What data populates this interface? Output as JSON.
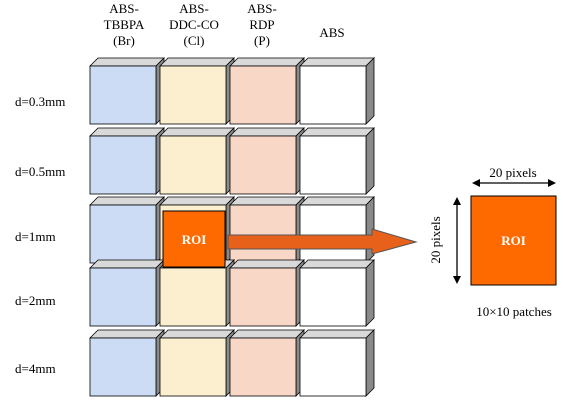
{
  "columns": [
    {
      "lines": [
        "ABS-",
        "TBBPA",
        "(Br)"
      ],
      "color": "#cddcf5"
    },
    {
      "lines": [
        "ABS-",
        "DDC-CO",
        "(Cl)"
      ],
      "color": "#fbefcf"
    },
    {
      "lines": [
        "ABS-",
        "RDP",
        "(P)"
      ],
      "color": "#f9d7c7"
    },
    {
      "lines": [
        "ABS"
      ],
      "color": "#ffffff"
    }
  ],
  "rows": [
    "d=0.3mm",
    "d=0.5mm",
    "d=1mm",
    "d=2mm",
    "d=4mm"
  ],
  "roi": {
    "label": "ROI",
    "row_index": 2,
    "col_index": 1,
    "color": "#ff6a00"
  },
  "roi_zoom": {
    "label": "ROI",
    "width_label": "20 pixels",
    "height_label": "20 pixels",
    "caption": "10×10 patches",
    "color": "#ff6a00"
  },
  "arrow_color": "#e8611a",
  "side_color": "#8a8a8a"
}
